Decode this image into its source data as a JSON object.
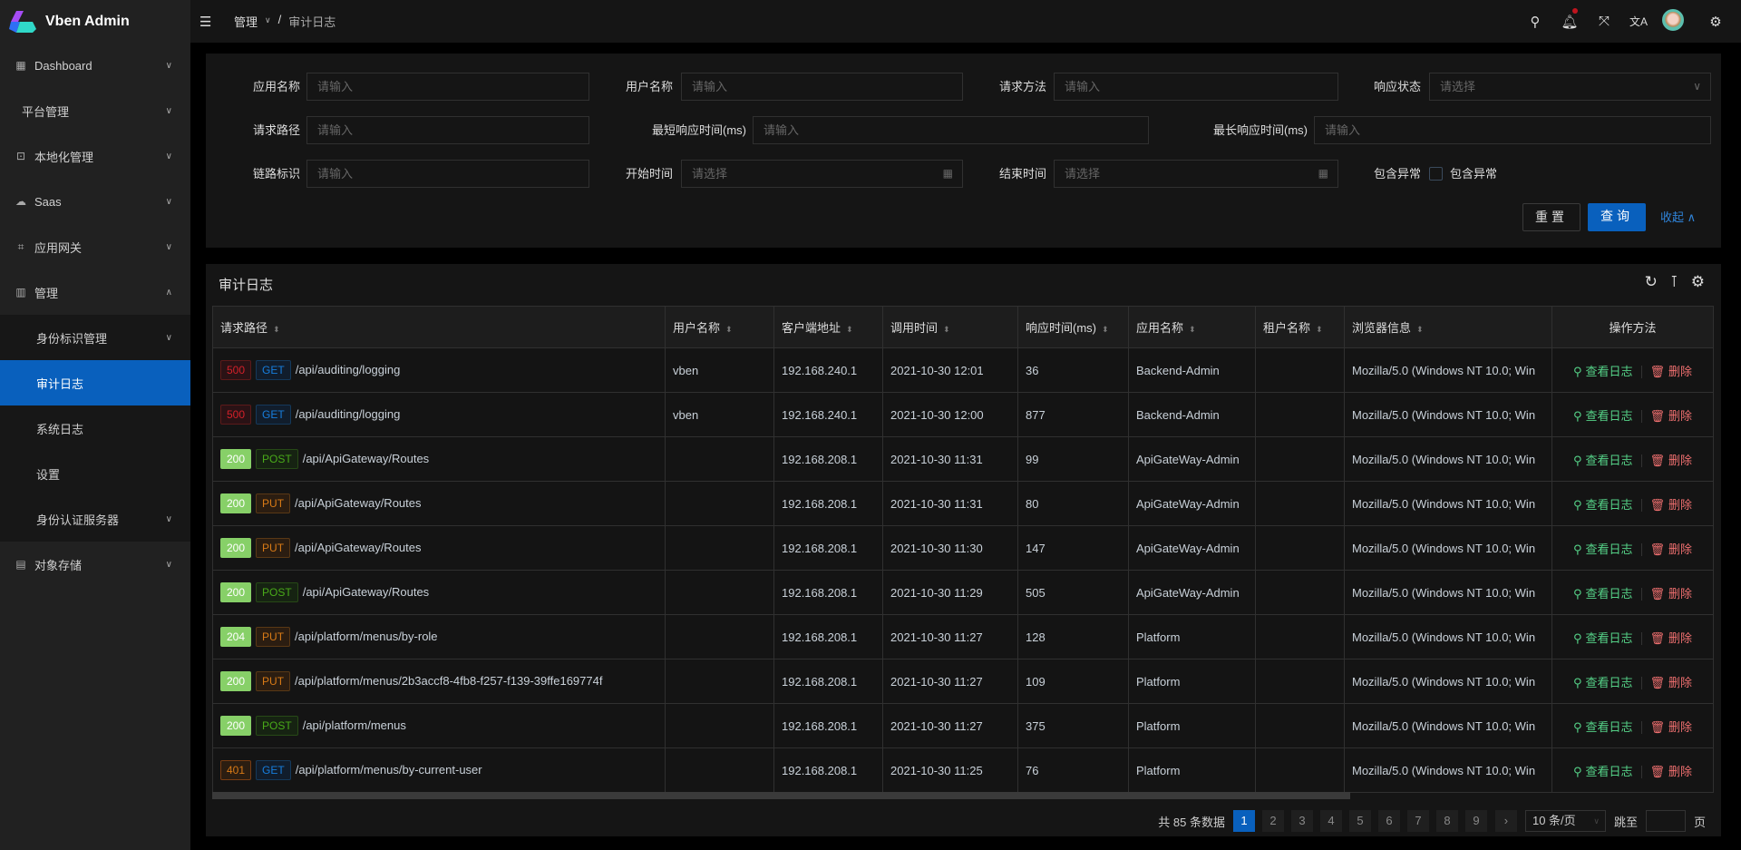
{
  "app": {
    "name": "Vben Admin"
  },
  "sidebar": {
    "items": [
      {
        "label": "Dashboard",
        "icon": "dashboard-icon"
      },
      {
        "label": "平台管理",
        "icon": ""
      },
      {
        "label": "本地化管理",
        "icon": "localization-icon"
      },
      {
        "label": "Saas",
        "icon": "cloud-icon"
      },
      {
        "label": "应用网关",
        "icon": "gateway-icon"
      },
      {
        "label": "管理",
        "icon": "manage-icon"
      },
      {
        "label": "身份标识管理",
        "sub": true
      },
      {
        "label": "审计日志",
        "sub": true,
        "active": true
      },
      {
        "label": "系统日志",
        "sub": true
      },
      {
        "label": "设置",
        "sub": true
      },
      {
        "label": "身份认证服务器",
        "sub": true
      },
      {
        "label": "对象存储",
        "icon": "file-icon"
      }
    ]
  },
  "header": {
    "breadcrumb": [
      "管理",
      "审计日志"
    ]
  },
  "form": {
    "app_name": "应用名称",
    "user_name": "用户名称",
    "method": "请求方法",
    "status": "响应状态",
    "path": "请求路径",
    "min_time": "最短响应时间(ms)",
    "max_time": "最长响应时间(ms)",
    "trace": "链路标识",
    "start": "开始时间",
    "end": "结束时间",
    "has_exception": "包含异常",
    "checkbox_label": "包含异常",
    "input_placeholder": "请输入",
    "select_placeholder": "请选择",
    "reset": "重置",
    "search": "查询",
    "collapse": "收起"
  },
  "table": {
    "title": "审计日志",
    "columns": [
      "请求路径",
      "用户名称",
      "客户端地址",
      "调用时间",
      "响应时间(ms)",
      "应用名称",
      "租户名称",
      "浏览器信息",
      "操作方法"
    ],
    "rows": [
      {
        "status": "500",
        "method": "GET",
        "path": "/api/auditing/logging",
        "user": "vben",
        "ip": "192.168.240.1",
        "time": "2021-10-30 12:01",
        "duration": "36",
        "app": "Backend-Admin",
        "tenant": "",
        "browser": "Mozilla/5.0 (Windows NT 10.0; Win"
      },
      {
        "status": "500",
        "method": "GET",
        "path": "/api/auditing/logging",
        "user": "vben",
        "ip": "192.168.240.1",
        "time": "2021-10-30 12:00",
        "duration": "877",
        "app": "Backend-Admin",
        "tenant": "",
        "browser": "Mozilla/5.0 (Windows NT 10.0; Win"
      },
      {
        "status": "200",
        "method": "POST",
        "path": "/api/ApiGateway/Routes",
        "user": "",
        "ip": "192.168.208.1",
        "time": "2021-10-30 11:31",
        "duration": "99",
        "app": "ApiGateWay-Admin",
        "tenant": "",
        "browser": "Mozilla/5.0 (Windows NT 10.0; Win"
      },
      {
        "status": "200",
        "method": "PUT",
        "path": "/api/ApiGateway/Routes",
        "user": "",
        "ip": "192.168.208.1",
        "time": "2021-10-30 11:31",
        "duration": "80",
        "app": "ApiGateWay-Admin",
        "tenant": "",
        "browser": "Mozilla/5.0 (Windows NT 10.0; Win"
      },
      {
        "status": "200",
        "method": "PUT",
        "path": "/api/ApiGateway/Routes",
        "user": "",
        "ip": "192.168.208.1",
        "time": "2021-10-30 11:30",
        "duration": "147",
        "app": "ApiGateWay-Admin",
        "tenant": "",
        "browser": "Mozilla/5.0 (Windows NT 10.0; Win"
      },
      {
        "status": "200",
        "method": "POST",
        "path": "/api/ApiGateway/Routes",
        "user": "",
        "ip": "192.168.208.1",
        "time": "2021-10-30 11:29",
        "duration": "505",
        "app": "ApiGateWay-Admin",
        "tenant": "",
        "browser": "Mozilla/5.0 (Windows NT 10.0; Win"
      },
      {
        "status": "204",
        "method": "PUT",
        "path": "/api/platform/menus/by-role",
        "user": "",
        "ip": "192.168.208.1",
        "time": "2021-10-30 11:27",
        "duration": "128",
        "app": "Platform",
        "tenant": "",
        "browser": "Mozilla/5.0 (Windows NT 10.0; Win"
      },
      {
        "status": "200",
        "method": "PUT",
        "path": "/api/platform/menus/2b3accf8-4fb8-f257-f139-39ffe169774f",
        "user": "",
        "ip": "192.168.208.1",
        "time": "2021-10-30 11:27",
        "duration": "109",
        "app": "Platform",
        "tenant": "",
        "browser": "Mozilla/5.0 (Windows NT 10.0; Win"
      },
      {
        "status": "200",
        "method": "POST",
        "path": "/api/platform/menus",
        "user": "",
        "ip": "192.168.208.1",
        "time": "2021-10-30 11:27",
        "duration": "375",
        "app": "Platform",
        "tenant": "",
        "browser": "Mozilla/5.0 (Windows NT 10.0; Win"
      },
      {
        "status": "401",
        "method": "GET",
        "path": "/api/platform/menus/by-current-user",
        "user": "",
        "ip": "192.168.208.1",
        "time": "2021-10-30 11:25",
        "duration": "76",
        "app": "Platform",
        "tenant": "",
        "browser": "Mozilla/5.0 (Windows NT 10.0; Win"
      }
    ],
    "view_label": "查看日志",
    "delete_label": "删除"
  },
  "pagination": {
    "total_text": "共 85 条数据",
    "pages": [
      "1",
      "2",
      "3",
      "4",
      "5",
      "6",
      "7",
      "8",
      "9"
    ],
    "current": "1",
    "page_size": "10 条/页",
    "jump_label": "跳至",
    "page_unit": "页"
  },
  "colors": {
    "primary": "#0960bd",
    "success": "#55d187",
    "danger": "#ed6f6f"
  }
}
